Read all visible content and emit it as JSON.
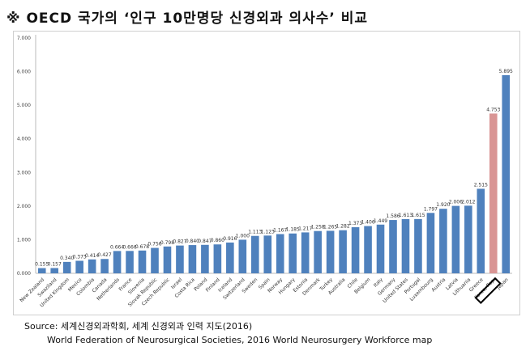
{
  "title": "※ OECD 국가의 ‘인구 10만명당 신경외과 의사수’ 비교",
  "source": {
    "line1": "Source: 세계신경외과학회, 세계 신경외과 인력 지도(2016)",
    "line2": "World Federation of Neurosurgical Societies, 2016 World Neurosurgery Workforce map"
  },
  "colors": {
    "bar": "#4f81bd",
    "highlight": "#d99594"
  },
  "chart_data": {
    "type": "bar",
    "title": "",
    "xlabel": "",
    "ylabel": "",
    "ylim": [
      0,
      7
    ],
    "yticks": [
      "0.000",
      "1.000",
      "2.000",
      "3.000",
      "4.000",
      "5.000",
      "6.000",
      "7.000"
    ],
    "grid": false,
    "highlight": "Korea, Rep.",
    "categories": [
      "New Zealand",
      "Swaziland",
      "United Kingdom",
      "Mexico",
      "Colombia",
      "Canada",
      "Netherlands",
      "France",
      "Slovenia",
      "Slovak Republic",
      "Czech Republic",
      "Israel",
      "Costa Rica",
      "Poland",
      "Finland",
      "Iceland",
      "Switzerland",
      "Sweden",
      "Spain",
      "Norway",
      "Hungary",
      "Estonia",
      "Denmark",
      "Turkey",
      "Australia",
      "Chile",
      "Belgium",
      "Italy",
      "Germany",
      "United States",
      "Portugal",
      "Luxembourg",
      "Austria",
      "Latvia",
      "Lithuania",
      "Greece",
      "Korea, Rep.",
      "Japan"
    ],
    "values": [
      0.155,
      0.157,
      0.34,
      0.373,
      0.414,
      0.427,
      0.664,
      0.666,
      0.678,
      0.756,
      0.798,
      0.827,
      0.84,
      0.847,
      0.86,
      0.916,
      1.0,
      1.113,
      1.123,
      1.167,
      1.185,
      1.217,
      1.258,
      1.265,
      1.282,
      1.373,
      1.406,
      1.449,
      1.586,
      1.613,
      1.615,
      1.797,
      1.92,
      2.006,
      2.012,
      2.515,
      4.753,
      5.895
    ],
    "labels": [
      "0.155",
      "0.157",
      "0.340",
      "0.373",
      "0.414",
      "0.427",
      "0.664",
      "0.666",
      "0.678",
      "0.756",
      "0.798",
      "0.827",
      "0.840",
      "0.847",
      "0.860",
      "0.916",
      "1.000",
      "1.113",
      "1.123",
      "1.167",
      "1.185",
      "1.217",
      "1.258",
      "1.265",
      "1.282",
      "1.373",
      "1.406",
      "1.449",
      "1.586",
      "1.613",
      "1.615",
      "1.797",
      "1.920",
      "2.006",
      "2.012",
      "2.515",
      "4.753",
      "5.895"
    ]
  }
}
